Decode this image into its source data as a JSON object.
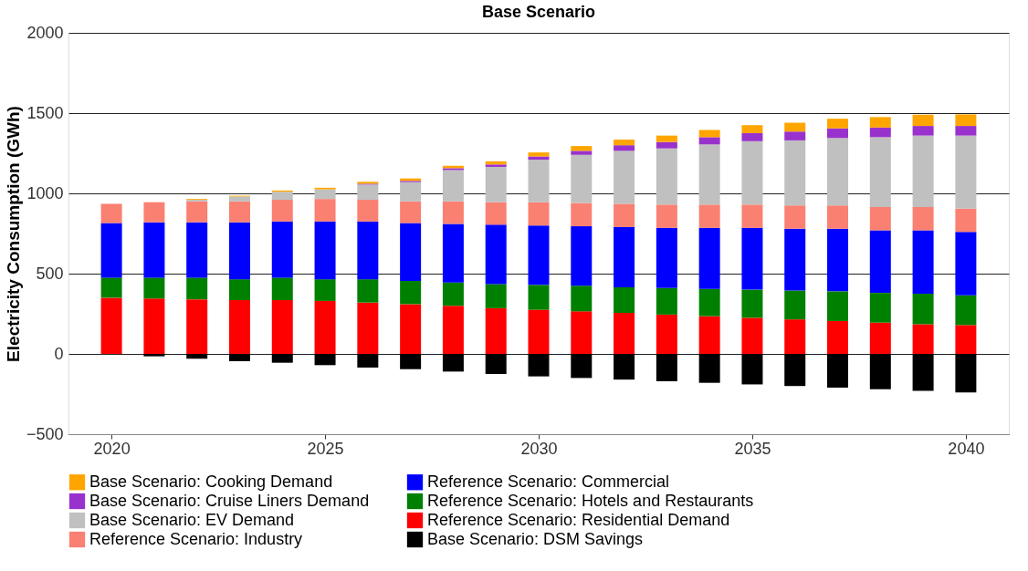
{
  "chart_data": {
    "type": "bar",
    "title": "Base Scenario",
    "ylabel": "Electricity Consumption (GWh)",
    "stacked": true,
    "x": [
      2020,
      2021,
      2022,
      2023,
      2024,
      2025,
      2026,
      2027,
      2028,
      2029,
      2030,
      2031,
      2032,
      2033,
      2034,
      2035,
      2036,
      2037,
      2038,
      2039,
      2040
    ],
    "xlim": [
      2019.1,
      2040.9
    ],
    "xticks": [
      2020,
      2025,
      2030,
      2035,
      2040
    ],
    "ylim": [
      -500,
      2000
    ],
    "yticks": [
      -500,
      0,
      500,
      1000,
      1500,
      2000
    ],
    "grid": "y",
    "legend": "bottom",
    "series": [
      {
        "name": "Reference Scenario: Residential Demand",
        "color": "#ff0000",
        "values": [
          350,
          345,
          340,
          335,
          335,
          330,
          320,
          310,
          300,
          285,
          275,
          265,
          255,
          245,
          235,
          225,
          215,
          205,
          195,
          185,
          180
        ]
      },
      {
        "name": "Reference Scenario: Hotels and Restaurants",
        "color": "#008000",
        "values": [
          125,
          130,
          135,
          130,
          140,
          135,
          145,
          145,
          145,
          150,
          155,
          160,
          160,
          165,
          170,
          175,
          180,
          185,
          185,
          190,
          185
        ]
      },
      {
        "name": "Reference Scenario: Commercial",
        "color": "#0000ff",
        "values": [
          340,
          345,
          345,
          355,
          350,
          360,
          360,
          360,
          365,
          370,
          370,
          370,
          375,
          375,
          380,
          385,
          385,
          390,
          390,
          395,
          395
        ]
      },
      {
        "name": "Reference Scenario: Industry",
        "color": "#fa8072",
        "values": [
          120,
          125,
          130,
          130,
          135,
          140,
          135,
          135,
          140,
          140,
          145,
          145,
          145,
          145,
          145,
          145,
          145,
          145,
          145,
          145,
          145
        ]
      },
      {
        "name": "Base Scenario: EV Demand",
        "color": "#c0c0c0",
        "values": [
          0,
          0,
          10,
          30,
          50,
          60,
          95,
          120,
          195,
          220,
          265,
          300,
          330,
          350,
          375,
          395,
          405,
          420,
          435,
          445,
          455
        ]
      },
      {
        "name": "Base Scenario: Cruise Liners Demand",
        "color": "#9932cc",
        "values": [
          0,
          0,
          0,
          0,
          0,
          0,
          5,
          8,
          12,
          15,
          20,
          25,
          35,
          40,
          45,
          50,
          55,
          60,
          60,
          60,
          60
        ]
      },
      {
        "name": "Base Scenario: Cooking Demand",
        "color": "#ffa500",
        "values": [
          0,
          0,
          5,
          5,
          8,
          10,
          12,
          15,
          15,
          20,
          25,
          30,
          35,
          40,
          45,
          50,
          55,
          60,
          65,
          70,
          72
        ]
      },
      {
        "name": "Base Scenario: DSM Savings",
        "color": "#000000",
        "values": [
          0,
          -15,
          -30,
          -45,
          -55,
          -70,
          -85,
          -95,
          -110,
          -125,
          -140,
          -150,
          -160,
          -170,
          -180,
          -190,
          -200,
          -210,
          -220,
          -230,
          -240
        ]
      }
    ]
  }
}
